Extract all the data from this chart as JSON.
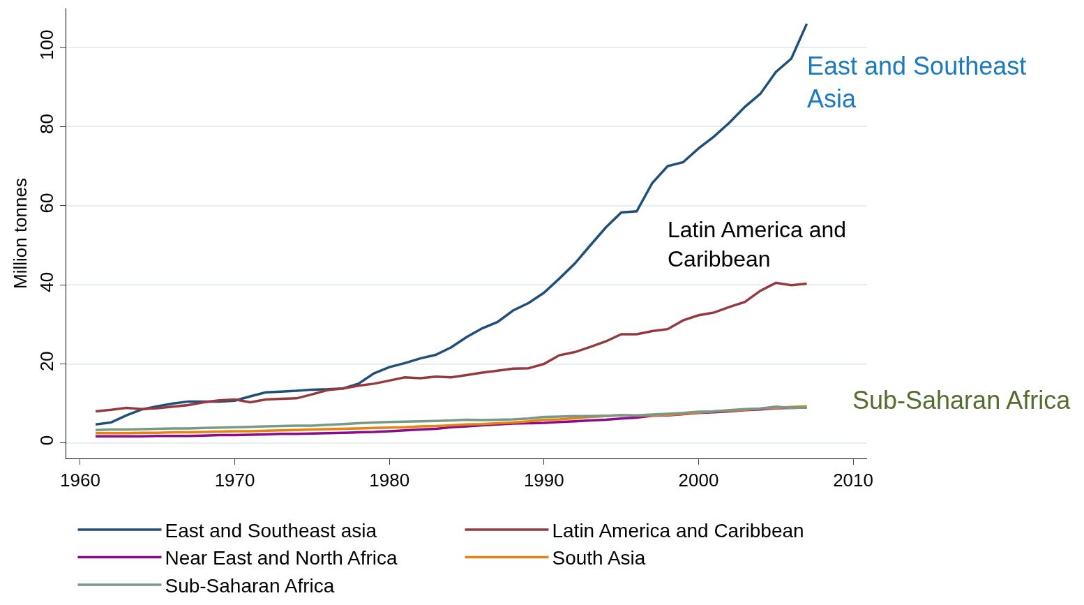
{
  "chart_data": {
    "type": "line",
    "ylabel": "Million tonnes",
    "x": [
      1961,
      1962,
      1963,
      1964,
      1965,
      1966,
      1967,
      1968,
      1969,
      1970,
      1971,
      1972,
      1973,
      1974,
      1975,
      1976,
      1977,
      1978,
      1979,
      1980,
      1981,
      1982,
      1983,
      1984,
      1985,
      1986,
      1987,
      1988,
      1989,
      1990,
      1991,
      1992,
      1993,
      1994,
      1995,
      1996,
      1997,
      1998,
      1999,
      2000,
      2001,
      2002,
      2003,
      2004,
      2005,
      2006,
      2007
    ],
    "series": [
      {
        "name": "East and Southeast asia",
        "color": "#1f4e79",
        "values": [
          4.7,
          5.2,
          7,
          8.5,
          9.3,
          10,
          10.5,
          10.5,
          10.5,
          10.7,
          11.8,
          12.8,
          13,
          13.2,
          13.5,
          13.6,
          13.8,
          15,
          17.6,
          19.2,
          20.2,
          21.4,
          22.3,
          24.2,
          26.8,
          29,
          30.6,
          33.5,
          35.4,
          38,
          41.6,
          45.4,
          50,
          54.5,
          58.3,
          58.6,
          65.7,
          70,
          71,
          74.5,
          77.5,
          81,
          85,
          88.3,
          93.8,
          97.2,
          106
        ]
      },
      {
        "name": "Latin America and Caribbean",
        "color": "#943a3f",
        "values": [
          8,
          8.4,
          8.9,
          8.6,
          8.8,
          9.2,
          9.6,
          10.3,
          10.8,
          11,
          10.3,
          11,
          11.2,
          11.3,
          12.3,
          13.4,
          13.8,
          14.5,
          15,
          15.8,
          16.6,
          16.4,
          16.8,
          16.6,
          17.2,
          17.8,
          18.3,
          18.8,
          18.9,
          20,
          22.2,
          23,
          24.3,
          25.7,
          27.5,
          27.5,
          28.3,
          28.8,
          31,
          32.3,
          33,
          34.4,
          35.7,
          38.5,
          40.5,
          39.9,
          40.3
        ]
      },
      {
        "name": "Near East and North Africa",
        "color": "#8b0a8b",
        "values": [
          1.7,
          1.7,
          1.7,
          1.7,
          1.8,
          1.8,
          1.8,
          1.9,
          2.0,
          2.0,
          2.1,
          2.2,
          2.3,
          2.3,
          2.4,
          2.5,
          2.6,
          2.7,
          2.8,
          3.0,
          3.2,
          3.4,
          3.6,
          4.0,
          4.2,
          4.5,
          4.7,
          4.9,
          5.0,
          5.1,
          5.3,
          5.5,
          5.7,
          5.9,
          6.2,
          6.4,
          6.9,
          7.0,
          7.3,
          7.6,
          7.8,
          8.0,
          8.3,
          8.5,
          8.8,
          8.9,
          9.0
        ]
      },
      {
        "name": "South Asia",
        "color": "#e8820c",
        "values": [
          2.5,
          2.5,
          2.5,
          2.6,
          2.6,
          2.7,
          2.7,
          2.8,
          2.9,
          3.0,
          3.0,
          3.1,
          3.2,
          3.3,
          3.4,
          3.5,
          3.6,
          3.7,
          3.8,
          3.9,
          4.0,
          4.2,
          4.3,
          4.5,
          4.7,
          4.8,
          5.0,
          5.2,
          5.5,
          5.9,
          6.0,
          6.3,
          6.6,
          6.8,
          7.1,
          6.9,
          7.0,
          7.1,
          7.4,
          7.7,
          8.0,
          8.2,
          8.4,
          8.7,
          8.9,
          9.1,
          9.3
        ]
      },
      {
        "name": "Sub-Saharan Africa",
        "color": "#779988",
        "values": [
          3.3,
          3.4,
          3.4,
          3.5,
          3.6,
          3.7,
          3.7,
          3.8,
          3.9,
          4.0,
          4.1,
          4.2,
          4.3,
          4.4,
          4.4,
          4.6,
          4.8,
          5.0,
          5.2,
          5.3,
          5.4,
          5.5,
          5.6,
          5.7,
          5.9,
          5.8,
          5.9,
          6.0,
          6.2,
          6.6,
          6.7,
          6.8,
          6.8,
          6.9,
          7.0,
          7.0,
          7.2,
          7.4,
          7.6,
          7.9,
          8.0,
          8.3,
          8.6,
          8.7,
          9.2,
          8.9,
          9.0
        ]
      }
    ],
    "annotations": [
      "East and Southeast\nAsia",
      "Latin America and\nCaribbean",
      "Sub-Saharan Africa"
    ],
    "xlim": [
      1959.1,
      2010.9
    ],
    "ylim": [
      -3.9,
      109.9
    ],
    "xticks": [
      1960,
      1970,
      1980,
      1990,
      2000,
      2010
    ],
    "yticks": [
      0,
      20,
      40,
      60,
      80,
      100
    ],
    "grid": "y",
    "legend": "bottom",
    "line_style": "solid"
  }
}
